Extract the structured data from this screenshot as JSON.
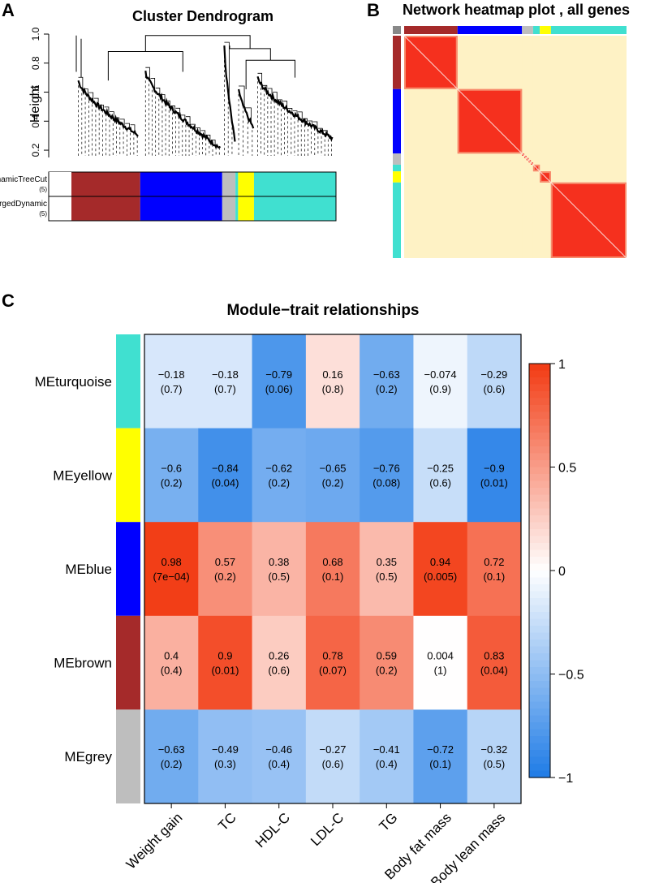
{
  "panels": {
    "a": {
      "letter": "A",
      "title": "Cluster Dendrogram",
      "ylabel": "Height",
      "yticks": [
        "0.2",
        "0.4",
        "0.6",
        "0.8",
        "1.0"
      ],
      "ytick_values": [
        0.2,
        0.4,
        0.6,
        0.8,
        1.0
      ],
      "ylim": [
        0.15,
        1.0
      ],
      "row_labels": [
        {
          "name": "DynamicTreeCut",
          "count": "(5)"
        },
        {
          "name": "MergedDynamic",
          "count": "(5)"
        }
      ]
    },
    "b": {
      "letter": "B",
      "title": "Network heatmap plot , all genes"
    },
    "c": {
      "letter": "C",
      "title": "Module−trait relationships"
    }
  },
  "colors": {
    "brown": "#A52A2A",
    "blue": "#0000FF",
    "grey": "#BEBEBE",
    "yellow": "#FFFF00",
    "turquoise": "#40E0D0",
    "heat_bg": "#FFF6C8",
    "heat_block": "#F5301E",
    "heat_mid": "#F8C8A0"
  },
  "chart_data": [
    {
      "type": "dendrogram",
      "title": "Cluster Dendrogram",
      "ylabel": "Height",
      "ylim": [
        0.15,
        1.0
      ],
      "modules": [
        {
          "name": "brown",
          "fraction": 0.26
        },
        {
          "name": "blue",
          "fraction": 0.31
        },
        {
          "name": "grey",
          "fraction": 0.05
        },
        {
          "name": "turquoise",
          "fraction": 0.01
        },
        {
          "name": "yellow",
          "fraction": 0.06
        },
        {
          "name": "turquoise",
          "fraction": 0.31
        }
      ]
    },
    {
      "type": "heatmap",
      "title": "Network heatmap plot , all genes",
      "modules": [
        {
          "name": "brown",
          "fraction": 0.24
        },
        {
          "name": "blue",
          "fraction": 0.29
        },
        {
          "name": "grey",
          "fraction": 0.05
        },
        {
          "name": "turquoise",
          "fraction": 0.03
        },
        {
          "name": "yellow",
          "fraction": 0.05
        },
        {
          "name": "turquoise",
          "fraction": 0.34
        }
      ]
    },
    {
      "type": "heatmap",
      "title": "Module−trait relationships",
      "rows": [
        {
          "label": "MEturquoise",
          "color": "turquoise"
        },
        {
          "label": "MEyellow",
          "color": "yellow"
        },
        {
          "label": "MEblue",
          "color": "blue"
        },
        {
          "label": "MEbrown",
          "color": "brown"
        },
        {
          "label": "MEgrey",
          "color": "grey"
        }
      ],
      "columns": [
        "Weight gain",
        "TC",
        "HDL-C",
        "LDL-C",
        "TG",
        "Body fat mass",
        "Body lean mass"
      ],
      "values": [
        [
          -0.18,
          -0.18,
          -0.79,
          0.16,
          -0.63,
          -0.074,
          -0.29
        ],
        [
          -0.6,
          -0.84,
          -0.62,
          -0.65,
          -0.76,
          -0.25,
          -0.9
        ],
        [
          0.98,
          0.57,
          0.38,
          0.68,
          0.35,
          0.94,
          0.72
        ],
        [
          0.4,
          0.9,
          0.26,
          0.78,
          0.59,
          0.004,
          0.83
        ],
        [
          -0.63,
          -0.49,
          -0.46,
          -0.27,
          -0.41,
          -0.72,
          -0.32
        ]
      ],
      "pvalues": [
        [
          "(0.7)",
          "(0.7)",
          "(0.06)",
          "(0.8)",
          "(0.2)",
          "(0.9)",
          "(0.6)"
        ],
        [
          "(0.2)",
          "(0.04)",
          "(0.2)",
          "(0.2)",
          "(0.08)",
          "(0.6)",
          "(0.01)"
        ],
        [
          "(7e−04)",
          "(0.2)",
          "(0.5)",
          "(0.1)",
          "(0.5)",
          "(0.005)",
          "(0.1)"
        ],
        [
          "(0.4)",
          "(0.01)",
          "(0.6)",
          "(0.07)",
          "(0.2)",
          "(1)",
          "(0.04)"
        ],
        [
          "(0.2)",
          "(0.3)",
          "(0.4)",
          "(0.6)",
          "(0.4)",
          "(0.1)",
          "(0.5)"
        ]
      ],
      "value_labels": [
        [
          "−0.18",
          "−0.18",
          "−0.79",
          "0.16",
          "−0.63",
          "−0.074",
          "−0.29"
        ],
        [
          "−0.6",
          "−0.84",
          "−0.62",
          "−0.65",
          "−0.76",
          "−0.25",
          "−0.9"
        ],
        [
          "0.98",
          "0.57",
          "0.38",
          "0.68",
          "0.35",
          "0.94",
          "0.72"
        ],
        [
          "0.4",
          "0.9",
          "0.26",
          "0.78",
          "0.59",
          "0.004",
          "0.83"
        ],
        [
          "−0.63",
          "−0.49",
          "−0.46",
          "−0.27",
          "−0.41",
          "−0.72",
          "−0.32"
        ]
      ],
      "colorbar": {
        "range": [
          -1,
          1
        ],
        "tick_values": [
          1,
          0.5,
          0,
          -0.5,
          -1
        ],
        "tick_labels": [
          "1",
          "0.5",
          "0",
          "−0.5",
          "−1"
        ],
        "low_color": "#1E7BE6",
        "mid_color": "#FFFFFF",
        "high_color": "#F23A12"
      }
    }
  ]
}
